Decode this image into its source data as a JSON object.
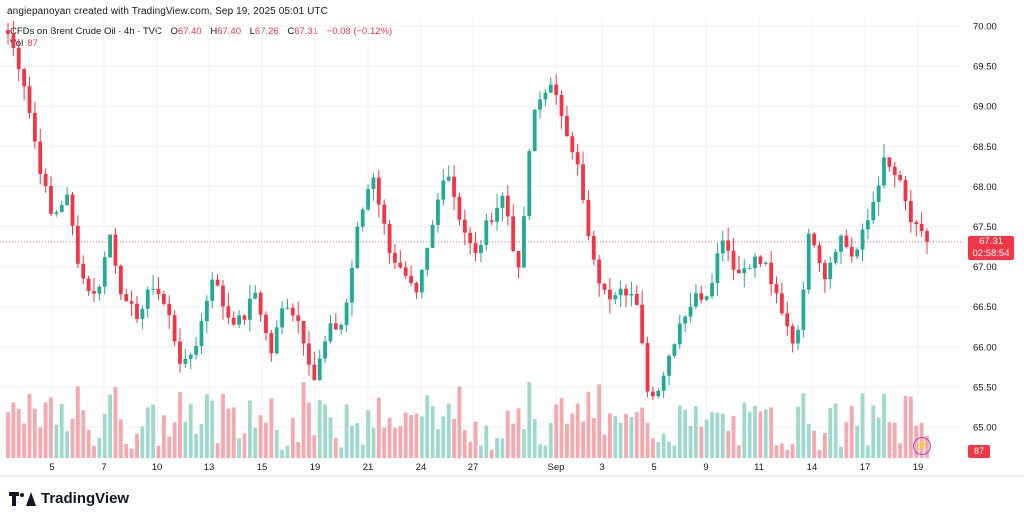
{
  "header": {
    "author_line": "angiepanoyan created with TradingView.com, Sep 19, 2025 05:01 UTC"
  },
  "legend": {
    "symbol": "CFDs on Brent Crude Oil · 4h · TVC",
    "open_label": "O",
    "open": "67.40",
    "high_label": "H",
    "high": "67.40",
    "low_label": "L",
    "low": "67.26",
    "close_label": "C",
    "close": "67.31",
    "change": "−0.08 (−0.12%)",
    "vol_label": "Vol",
    "vol": "87"
  },
  "price_tag": {
    "price": "67.31",
    "countdown": "02:58:54"
  },
  "vol_tag": "87",
  "brand": "TradingView",
  "colors": {
    "up": "#22ab94",
    "down": "#f23645",
    "vol_up": "#9fd8cc",
    "vol_down": "#f7a8ad",
    "grid": "#eef0f3"
  },
  "chart_data": {
    "type": "candlestick",
    "title": "CFDs on Brent Crude Oil · 4h · TVC",
    "y_ticks": [
      "70.00",
      "69.50",
      "69.00",
      "68.50",
      "68.00",
      "67.50",
      "67.00",
      "66.50",
      "66.00",
      "65.50",
      "65.00"
    ],
    "ylim": [
      64.65,
      70.15
    ],
    "x_ticks": [
      "5",
      "7",
      "10",
      "13",
      "15",
      "19",
      "21",
      "24",
      "27",
      "Sep",
      "3",
      "5",
      "9",
      "11",
      "14",
      "17",
      "19"
    ],
    "last_price": 67.31,
    "series_path": [
      69.9,
      69.4,
      68.4,
      67.6,
      67.9,
      66.9,
      66.6,
      67.4,
      66.5,
      66.4,
      66.8,
      66.4,
      65.7,
      66.1,
      66.9,
      66.4,
      66.3,
      66.7,
      65.9,
      66.6,
      66.3,
      65.6,
      66.2,
      66.3,
      67.5,
      68.2,
      67.3,
      66.9,
      66.6,
      67.4,
      68.3,
      67.6,
      67.1,
      67.6,
      67.9,
      66.9,
      68.9,
      69.3,
      68.9,
      68.3,
      67.1,
      66.6,
      66.8,
      66.6,
      65.3,
      65.7,
      66.3,
      66.6,
      66.7,
      67.4,
      66.9,
      67.1,
      67.0,
      66.4,
      66.0,
      67.5,
      66.9,
      67.4,
      67.1,
      67.6,
      68.3,
      68.1,
      67.5,
      67.3
    ]
  }
}
